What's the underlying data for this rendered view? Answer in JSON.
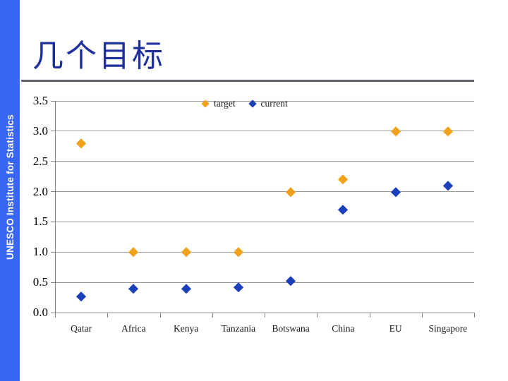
{
  "slide": {
    "title": "几个目标",
    "sidebar_text": "UNESCO Institute for Statistics"
  },
  "colors": {
    "sidebar_blue": "#3A66F4",
    "title_blue": "#1F2F9E",
    "underline_gray": "#64646E",
    "gridline_gray": "#9A9A9A",
    "axis_gray": "#808080",
    "target_orange": "#F2A11C",
    "current_blue": "#1C3FBB"
  },
  "chart_data": {
    "type": "scatter",
    "title": "",
    "xlabel": "",
    "ylabel": "",
    "categories": [
      "Qatar",
      "Africa",
      "Kenya",
      "Tanzania",
      "Botswana",
      "China",
      "EU",
      "Singapore"
    ],
    "series": [
      {
        "name": "target",
        "color": "#F2A11C",
        "values": [
          2.8,
          1.0,
          1.0,
          1.0,
          2.0,
          2.2,
          3.0,
          3.0
        ]
      },
      {
        "name": "current",
        "color": "#1C3FBB",
        "values": [
          0.27,
          0.4,
          0.4,
          0.42,
          0.52,
          1.7,
          2.0,
          2.1
        ]
      }
    ],
    "ylim": [
      0,
      3.5
    ],
    "y_ticks": [
      "0.0",
      "0.5",
      "1.0",
      "1.5",
      "2.0",
      "2.5",
      "3.0",
      "3.5"
    ],
    "grid": true,
    "legend_position": "top"
  }
}
